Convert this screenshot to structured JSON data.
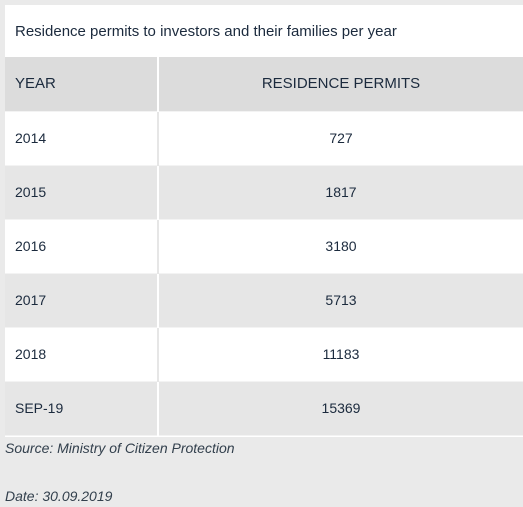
{
  "title": "Residence permits to investors and their families per year",
  "header": {
    "year": "YEAR",
    "permits": "RESIDENCE PERMITS"
  },
  "chart_data": {
    "type": "table",
    "title": "Residence permits to investors and their families per year",
    "columns": [
      "YEAR",
      "RESIDENCE PERMITS"
    ],
    "rows": [
      {
        "year": "2014",
        "permits": "727"
      },
      {
        "year": "2015",
        "permits": "1817"
      },
      {
        "year": "2016",
        "permits": "3180"
      },
      {
        "year": "2017",
        "permits": "5713"
      },
      {
        "year": "2018",
        "permits": "11183"
      },
      {
        "year": "SEP-19",
        "permits": "15369"
      }
    ]
  },
  "source": "Source: Ministry of Citizen Protection",
  "date": "Date: 30.09.2019"
}
